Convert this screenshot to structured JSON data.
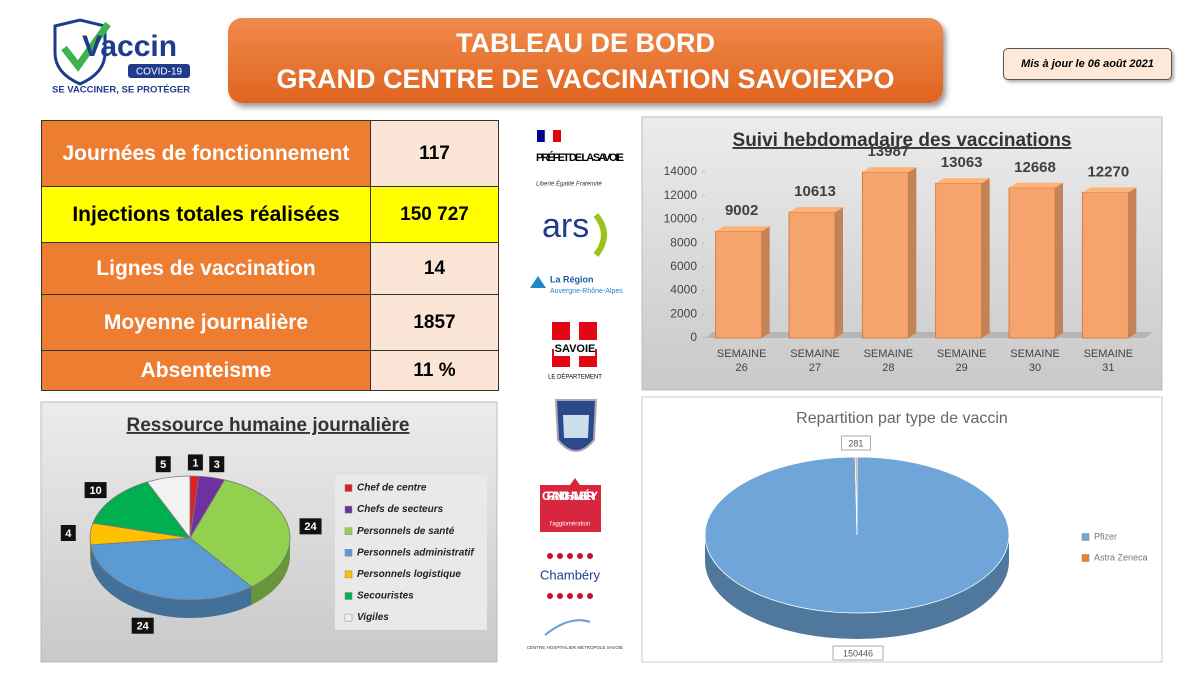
{
  "header": {
    "logo_name": "Vaccin",
    "logo_badge": "COVID-19",
    "logo_slogan": "SE VACCINER, SE PROTÉGER",
    "title_line1": "TABLEAU DE BORD",
    "title_line2": "GRAND CENTRE DE VACCINATION SAVOIEXPO",
    "updated": "Mis à jour le 06 août 2021"
  },
  "table": {
    "rows": [
      {
        "label": "Journées de fonctionnement",
        "value": "117"
      },
      {
        "label": "Injections totales réalisées",
        "value": "150 727"
      },
      {
        "label": "Lignes de vaccination",
        "value": "14"
      },
      {
        "label": "Moyenne journalière",
        "value": "1857"
      },
      {
        "label": "Absenteisme",
        "value": "11 %"
      }
    ]
  },
  "partners": [
    "PRÉFET DE LA SAVOIE",
    "Liberté Égalité Fraternité",
    "ars",
    "La Région",
    "Auvergne-Rhône-Alpes",
    "SAVOIE",
    "LE DÉPARTEMENT",
    "GRAND CHAMBÉRY",
    "l'agglomération",
    "Chambéry",
    "CENTRE HOSPITALIER MÉTROPOLE SAVOIE"
  ],
  "chart_data": [
    {
      "type": "bar",
      "title": "Suivi hebdomadaire des vaccinations",
      "categories": [
        "SEMAINE 26",
        "SEMAINE 27",
        "SEMAINE 28",
        "SEMAINE 29",
        "SEMAINE 30",
        "SEMAINE 31"
      ],
      "values": [
        9002,
        10613,
        13987,
        13063,
        12668,
        12270
      ],
      "color": "#f4a46c",
      "ylim": [
        0,
        14000
      ],
      "yticks": [
        0,
        2000,
        4000,
        6000,
        8000,
        10000,
        12000,
        14000
      ]
    },
    {
      "type": "pie",
      "title": "Ressource humaine journalière",
      "categories": [
        "Chef de centre",
        "Chefs de secteurs",
        "Personnels de santé",
        "Personnels administratif",
        "Personnels logistique",
        "Secouristes",
        "Vigiles"
      ],
      "values": [
        1,
        3,
        24,
        24,
        4,
        10,
        5
      ],
      "colors": [
        "#e02020",
        "#7030a0",
        "#92d050",
        "#5b9bd5",
        "#ffc000",
        "#00b050",
        "#f2f2f2"
      ],
      "legend": "right"
    },
    {
      "type": "pie",
      "title": "Repartition par type de vaccin",
      "categories": [
        "Pfizer",
        "Astra Zeneca"
      ],
      "values": [
        150446,
        281
      ],
      "colors": [
        "#6fa5d8",
        "#ed7d31"
      ],
      "legend": "right"
    }
  ]
}
